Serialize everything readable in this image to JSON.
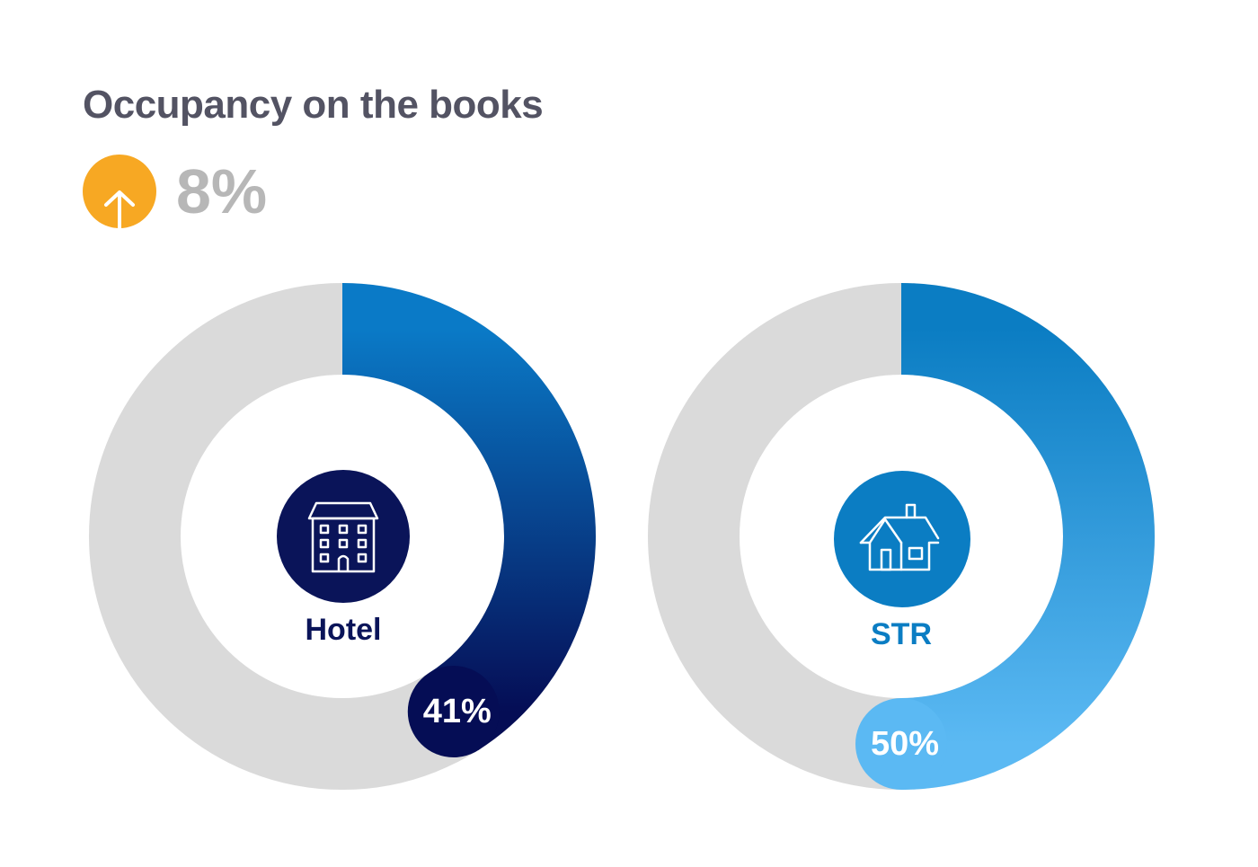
{
  "title": "Occupancy on the books",
  "change": {
    "value": "8%",
    "direction": "up",
    "icon": "arrow-up-icon",
    "color": "#f7a823"
  },
  "chart_data": [
    {
      "type": "pie",
      "category": "Hotel",
      "icon": "hotel-building-icon",
      "value": 41,
      "value_label": "41%",
      "max": 100,
      "colors": {
        "track": "#dadada",
        "arc_start": "#0a7ac7",
        "arc_end": "#050d55",
        "icon_bg": "#0a1459",
        "label": "#0a1459",
        "badge": "#050d55"
      }
    },
    {
      "type": "pie",
      "category": "STR",
      "icon": "house-icon",
      "value": 50,
      "value_label": "50%",
      "max": 100,
      "colors": {
        "track": "#dadada",
        "arc_start": "#0b7dc3",
        "arc_end": "#5bb9f3",
        "icon_bg": "#0b7dc3",
        "label": "#0b7dc3",
        "badge": "#5bb9f3"
      }
    }
  ]
}
